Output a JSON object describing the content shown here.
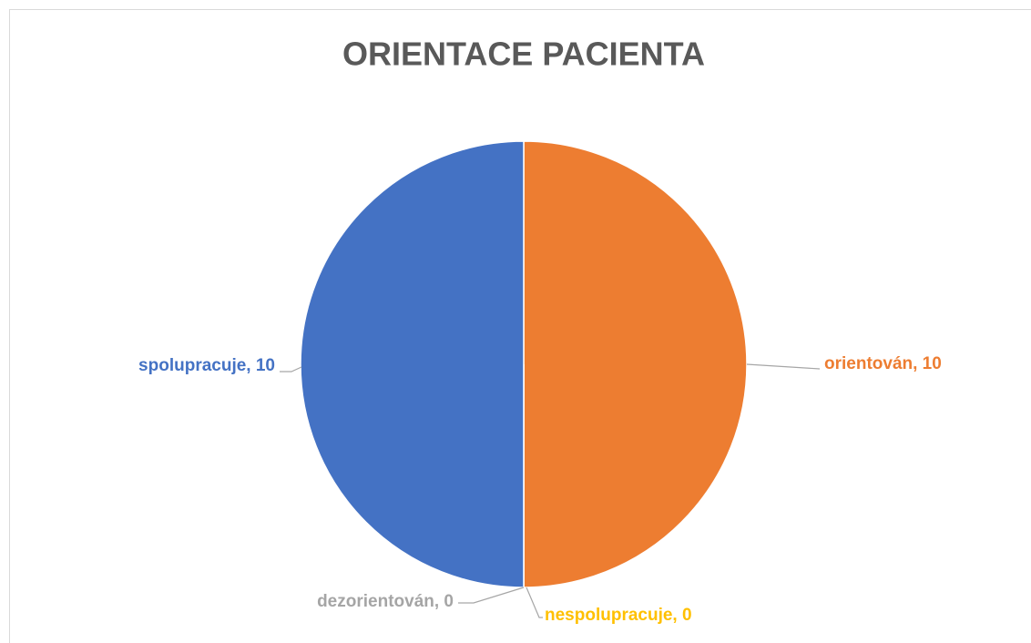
{
  "chart_data": {
    "type": "pie",
    "title": "ORIENTACE PACIENTA",
    "categories": [
      "orientován",
      "dezorientován",
      "nespolupracuje",
      "spolupracuje"
    ],
    "values": [
      10,
      0,
      0,
      10
    ],
    "value_labels": [
      "orientován, 10",
      "dezorientován, 0",
      "nespolupracuje, 0",
      "spolupracuje, 10"
    ],
    "colors": [
      "#ed7d31",
      "#a5a5a5",
      "#ffc000",
      "#4472c4"
    ]
  }
}
